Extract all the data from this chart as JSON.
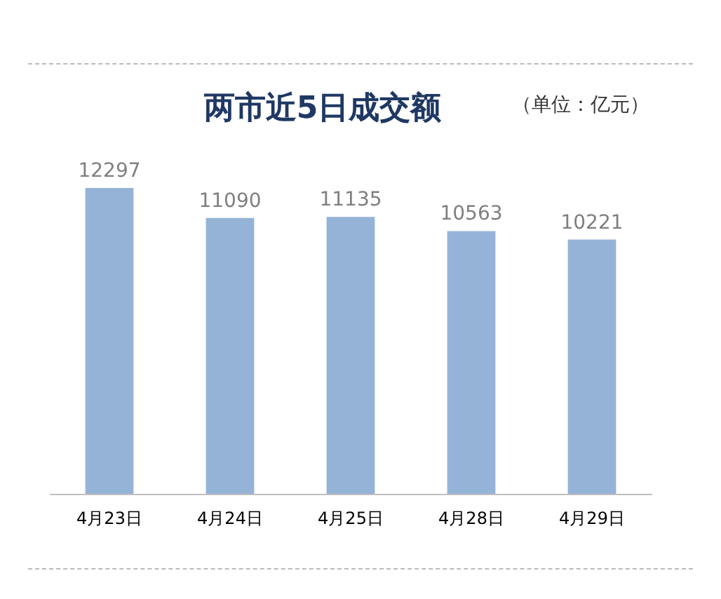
{
  "chart_data": {
    "type": "bar",
    "title": "两市近5日成交额",
    "subtitle": "（单位：亿元）",
    "categories": [
      "4月23日",
      "4月24日",
      "4月25日",
      "4月28日",
      "4月29日"
    ],
    "values": [
      12297,
      11090,
      11135,
      10563,
      10221
    ],
    "color": "#95b3d7",
    "data_labels": true
  }
}
